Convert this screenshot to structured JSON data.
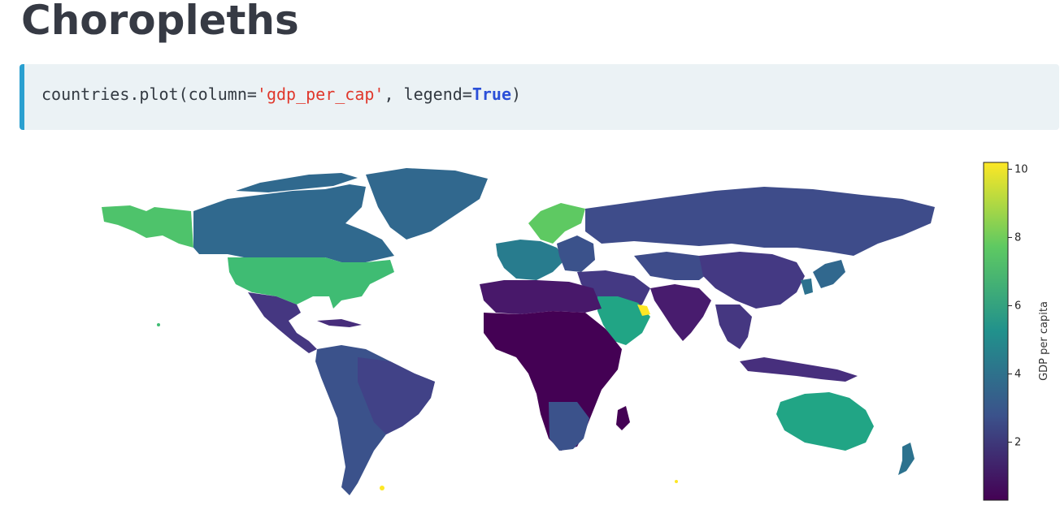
{
  "page": {
    "title": "Choropleths"
  },
  "code": {
    "prefix": "countries.plot(column=",
    "string_arg": "'gdp_per_cap'",
    "middle": ", legend=",
    "keyword": "True",
    "suffix": ")"
  },
  "colorbar": {
    "label": "GDP per capita",
    "ticks": [
      "10",
      "8",
      "6",
      "4",
      "2"
    ],
    "tick_values": [
      10,
      8,
      6,
      4,
      2
    ],
    "range": [
      0.3,
      10.2
    ],
    "colormap": "viridis",
    "colors": [
      "#440154",
      "#3b528b",
      "#21918c",
      "#5ec962",
      "#fde725"
    ]
  }
}
